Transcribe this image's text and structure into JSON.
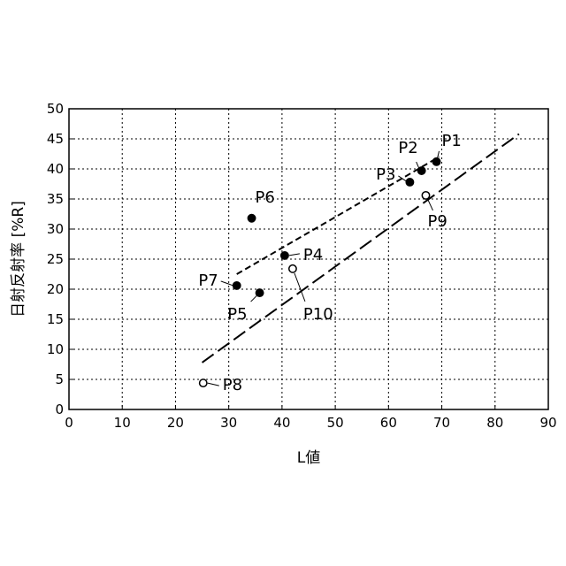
{
  "chart_data": {
    "type": "scatter",
    "xlabel": "L値",
    "ylabel": "日射反射率 [%R]",
    "xlim": [
      0,
      90
    ],
    "ylim": [
      0,
      50
    ],
    "xticks": [
      0,
      10,
      20,
      30,
      40,
      50,
      60,
      70,
      80,
      90
    ],
    "yticks": [
      0,
      5,
      10,
      15,
      20,
      25,
      30,
      35,
      40,
      45,
      50
    ],
    "grid": true,
    "points": [
      {
        "label": "P1",
        "x": 69.0,
        "y": 41.2,
        "filled": true
      },
      {
        "label": "P2",
        "x": 66.2,
        "y": 39.7,
        "filled": true
      },
      {
        "label": "P3",
        "x": 64.0,
        "y": 37.8,
        "filled": true
      },
      {
        "label": "P4",
        "x": 40.5,
        "y": 25.6,
        "filled": true
      },
      {
        "label": "P5",
        "x": 35.8,
        "y": 19.4,
        "filled": true
      },
      {
        "label": "P6",
        "x": 34.3,
        "y": 31.8,
        "filled": true
      },
      {
        "label": "P7",
        "x": 31.5,
        "y": 20.6,
        "filled": true
      },
      {
        "label": "P8",
        "x": 25.2,
        "y": 4.4,
        "filled": false
      },
      {
        "label": "P9",
        "x": 67.0,
        "y": 35.6,
        "filled": false
      },
      {
        "label": "P10",
        "x": 42.0,
        "y": 23.4,
        "filled": false
      }
    ],
    "trendlines": [
      {
        "style": "short-dash",
        "x": [
          31.5,
          69.5
        ],
        "y": [
          22.5,
          42.0
        ]
      },
      {
        "style": "long-dash",
        "x": [
          25.0,
          84.5
        ],
        "y": [
          7.8,
          45.8
        ]
      }
    ]
  }
}
